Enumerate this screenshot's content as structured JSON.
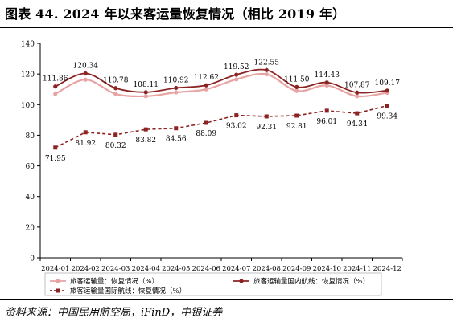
{
  "figure": {
    "title": "图表 44.   2024 年以来客运量恢复情况（相比 2019 年）",
    "source": "资料来源：中国民用航空局，iFinD，中银证券"
  },
  "chart_data": {
    "type": "line",
    "title": "",
    "xlabel": "",
    "ylabel": "",
    "ylim": [
      0,
      140
    ],
    "yticks": [
      0,
      20,
      40,
      60,
      80,
      100,
      120,
      140
    ],
    "grid": false,
    "legend_position": "bottom",
    "categories": [
      "2024-01",
      "2024-02",
      "2024-03",
      "2024-04",
      "2024-05",
      "2024-06",
      "2024-07",
      "2024-08",
      "2024-09",
      "2024-10",
      "2024-11",
      "2024-12"
    ],
    "series": [
      {
        "name": "旅客运输量：恢复情况（%）",
        "color": "#e8a3a3",
        "style": "solid",
        "marker": "circle",
        "values": [
          107.0,
          116.3,
          107.0,
          105.5,
          108.0,
          110.0,
          116.5,
          119.8,
          109.0,
          112.5,
          105.5,
          107.8
        ],
        "labeled": false
      },
      {
        "name": "旅客运输量国内航线：恢复情况（%）",
        "color": "#8b2323",
        "style": "solid",
        "marker": "circle",
        "values": [
          111.86,
          120.34,
          110.78,
          108.11,
          110.92,
          112.62,
          119.52,
          122.55,
          111.5,
          114.43,
          107.87,
          109.17
        ],
        "data_labels": [
          "111.86",
          "120.34",
          "110.78",
          "108.11",
          "110.92",
          "112.62",
          "119.52",
          "122.55",
          "111.50",
          "114.43",
          "107.87",
          "109.17"
        ],
        "labeled": true
      },
      {
        "name": "旅客运输量国际航线：恢复情况（%）",
        "color": "#8b2323",
        "style": "dashed",
        "marker": "square",
        "values": [
          71.95,
          81.92,
          80.32,
          83.82,
          84.56,
          88.09,
          93.02,
          92.31,
          92.81,
          96.01,
          94.34,
          99.34
        ],
        "data_labels": [
          "71.95",
          "81.92",
          "80.32",
          "83.82",
          "84.56",
          "88.09",
          "93.02",
          "92.31",
          "92.81",
          "96.01",
          "94.34",
          "99.34"
        ],
        "labeled": true
      }
    ]
  }
}
